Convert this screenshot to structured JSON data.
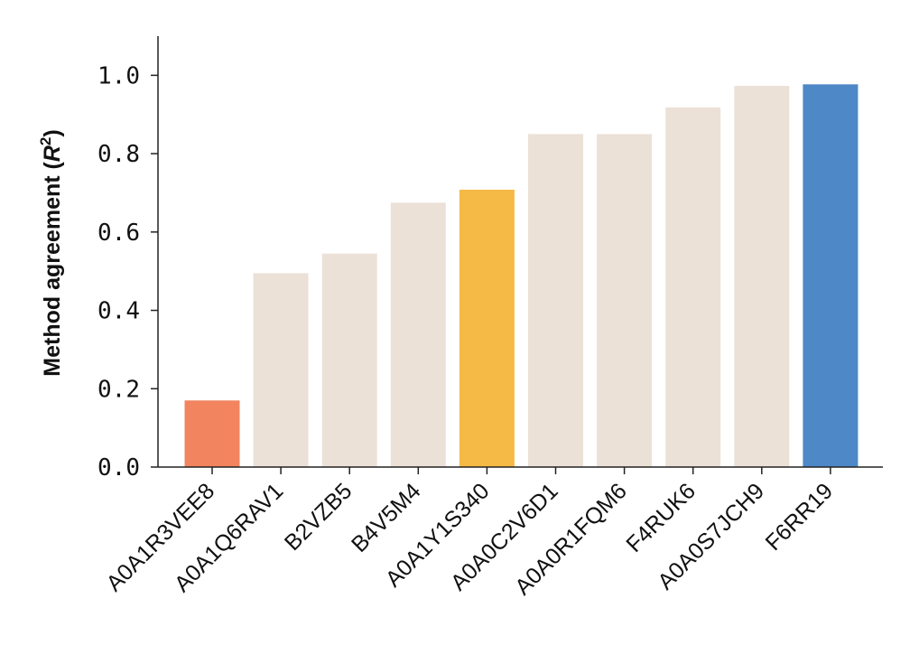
{
  "chart_data": {
    "type": "bar",
    "title": "",
    "xlabel": "",
    "ylabel": "Method agreement (R²)",
    "categories": [
      "A0A1R3VEE8",
      "A0A1Q6RAV1",
      "B2VZB5",
      "B4V5M4",
      "A0A1Y1S340",
      "A0A0C2V6D1",
      "A0A0R1FQM6",
      "F4RUK6",
      "A0A0S7JCH9",
      "F6RR19"
    ],
    "values": [
      0.17,
      0.495,
      0.545,
      0.675,
      0.708,
      0.85,
      0.85,
      0.918,
      0.973,
      0.977
    ],
    "colors": [
      "#f2845f",
      "#ece1d7",
      "#ece1d7",
      "#ece1d7",
      "#f5b945",
      "#ece1d7",
      "#ece1d7",
      "#ece1d7",
      "#ece1d7",
      "#4e88c6"
    ],
    "ylim": [
      0,
      1.1
    ],
    "yticks": [
      "0.0",
      "0.2",
      "0.4",
      "0.6",
      "0.8",
      "1.0"
    ],
    "grid": false,
    "legend": "none"
  }
}
